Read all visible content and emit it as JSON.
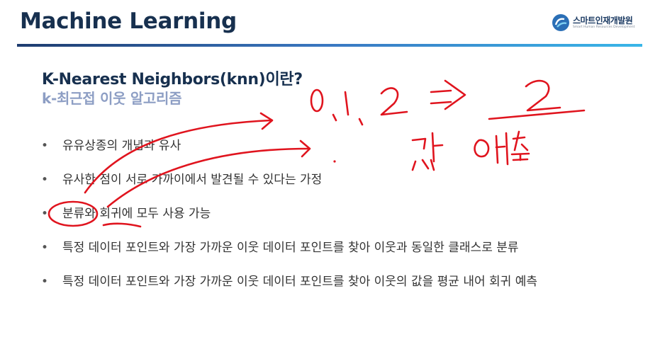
{
  "header": {
    "title": "Machine Learning",
    "logo_name": "스마트인재개발원",
    "logo_tagline": "Smart Human Resources Development",
    "rule_colors": [
      "#1e3c6f",
      "#3a78c2",
      "#39b6e8"
    ]
  },
  "slide": {
    "title": "K-Nearest Neighbors(knn)이란?",
    "subtitle": "k-최근접 이웃 알고리즘",
    "bullets": [
      "유유상종의 개념과 유사",
      "유사한 점이 서로 가까이에서 발견될 수 있다는 가정",
      "분류와 회귀에 모두 사용 가능",
      "특정 데이터 포인트와 가장 가까운 이웃 데이터 포인트를 찾아 이웃과 동일한 클래스로 분류",
      "특정 데이터 포인트와 가장 가까운 이웃 데이터 포인트를 찾아 이웃의 값을 평균 내어 회귀 예측"
    ]
  },
  "annotations": {
    "ink_color": "#e0141e",
    "handwritten_values": "0, 1, 2 ⇒ 2",
    "handwritten_note": "값 예측"
  }
}
